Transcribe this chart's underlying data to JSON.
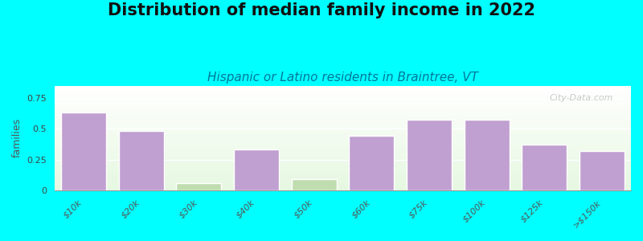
{
  "title": "Distribution of median family income in 2022",
  "subtitle": "Hispanic or Latino residents in Braintree, VT",
  "ylabel": "families",
  "categories": [
    "$10k",
    "$20k",
    "$30k",
    "$40k",
    "$50k",
    "$60k",
    "$75k",
    "$100k",
    "$125k",
    ">$150k"
  ],
  "values": [
    0.63,
    0.48,
    0.06,
    0.33,
    0.09,
    0.44,
    0.57,
    0.57,
    0.37,
    0.32
  ],
  "bar_colors": [
    "#c0a0d0",
    "#c0a0d0",
    "#c0ddb0",
    "#c0a0d0",
    "#c0ddb0",
    "#c0a0d0",
    "#c0a0d0",
    "#c0a0d0",
    "#c0a0d0",
    "#c0a0d0"
  ],
  "background_color": "#00ffff",
  "ylim": [
    0,
    0.85
  ],
  "yticks": [
    0,
    0.25,
    0.5,
    0.75
  ],
  "title_fontsize": 15,
  "subtitle_fontsize": 11,
  "ylabel_fontsize": 9,
  "tick_fontsize": 8,
  "watermark": "City-Data.com"
}
